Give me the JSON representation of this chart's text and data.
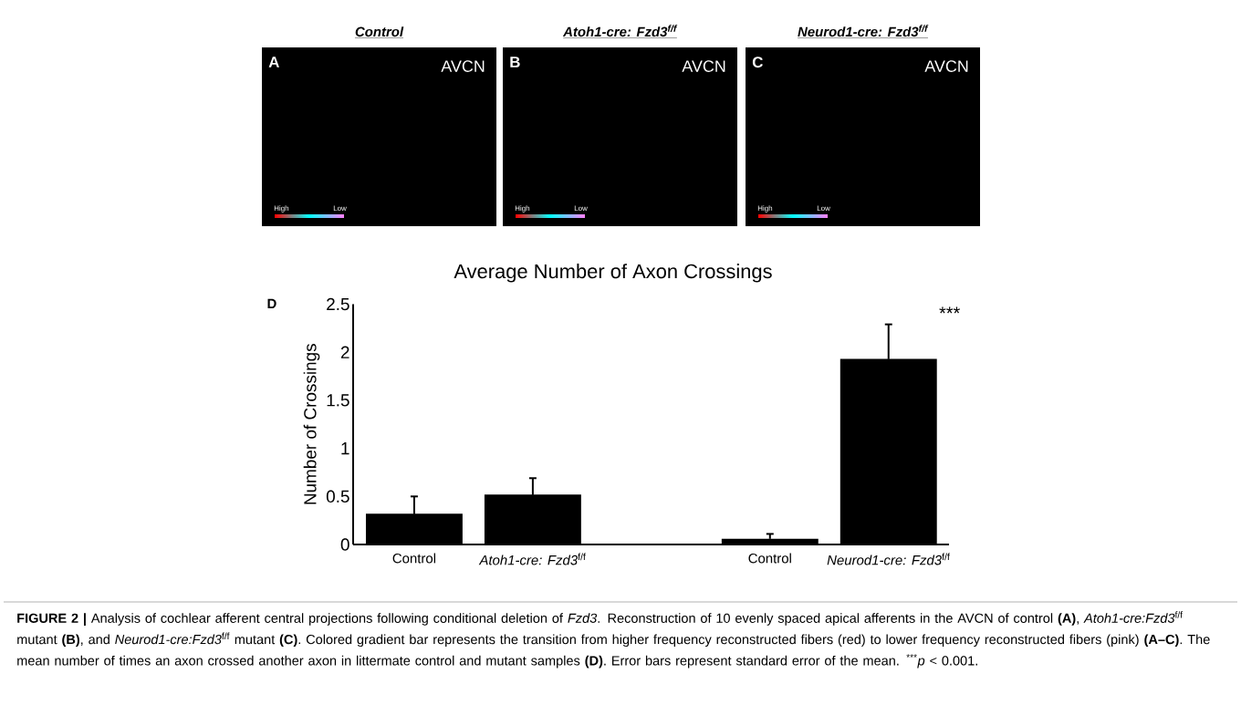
{
  "chart_data": [
    {
      "type": "other",
      "title": "Control",
      "annotations": [
        "A",
        "AVCN",
        "High",
        "Low"
      ]
    },
    {
      "type": "other",
      "title": "Atoh1-cre: Fzd3$^{f/f}$",
      "annotations": [
        "B",
        "AVCN",
        "High",
        "Low"
      ]
    },
    {
      "type": "other",
      "title": "Neurod1-cre: Fzd3$^{f/f}$",
      "annotations": [
        "C",
        "AVCN",
        "High",
        "Low"
      ]
    },
    {
      "type": "bar",
      "title": "Average Number of Axon Crossings",
      "ylabel": "Number of Crossings",
      "categories": [
        "Control",
        "*Atoh1-cre: Fzd3*$^{f/f}$",
        null,
        "Control",
        "*Neurod1-cre: Fzd3*$^{f/f}$"
      ],
      "values": [
        0.32,
        0.52,
        null,
        0.06,
        1.93
      ],
      "errors": [
        0.18,
        0.17,
        null,
        0.05,
        0.36
      ],
      "color": "#000000",
      "ylim": [
        0,
        2.5
      ],
      "yticks": [
        0,
        0.5,
        1,
        1.5,
        2,
        2.5
      ],
      "annotations": [
        "D",
        "***",
        "**FIGURE 2 |** Analysis of cochlear afferent central projections following conditional deletion of *Fzd3*. Reconstruction of 10 evenly spaced apical afferents in the AVCN of control **(A)**, *Atoh1-cre:Fzd3*$^{f/f}$ mutant **(B)**, and *Neurod1-cre:Fzd3*$^{f/f}$ mutant **(C)**. Colored gradient bar represents the transition from higher frequency reconstructed fibers (red) to lower frequency reconstructed fibers (pink) **(A–C)**. The mean number of times an axon crossed another axon in littermate control and mutant samples **(D)**. Error bars represent standard error of the mean. $^{***}$*p* < 0.001."
      ]
    }
  ]
}
